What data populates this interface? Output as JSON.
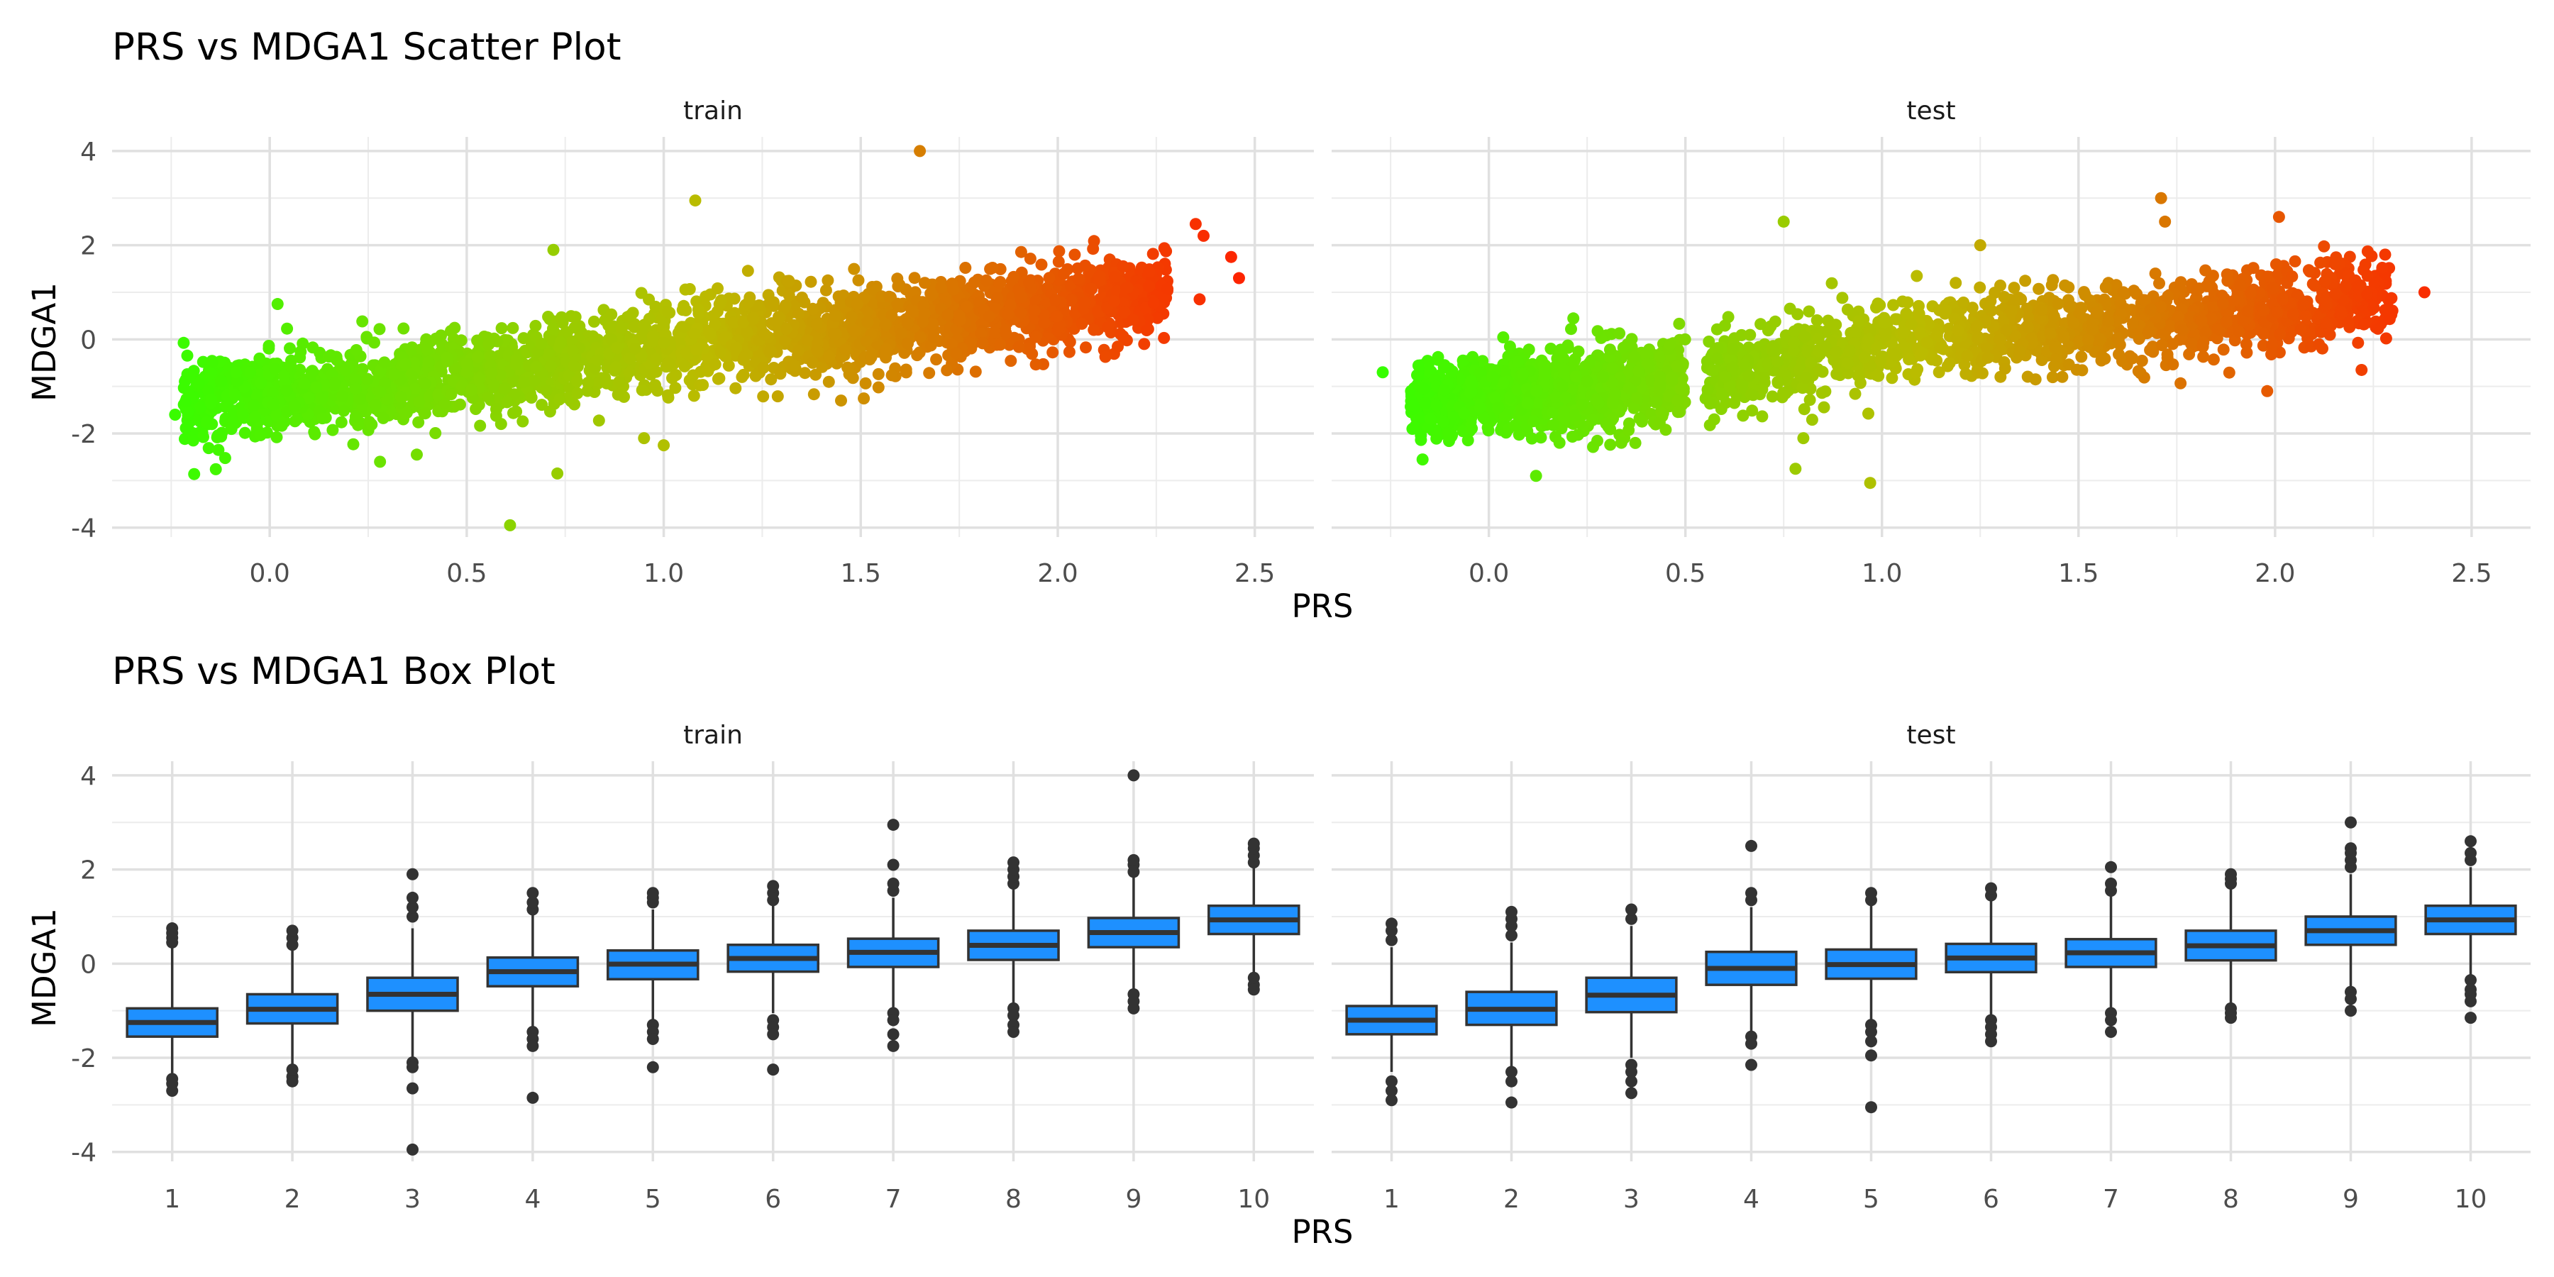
{
  "chart_data": [
    {
      "type": "scatter",
      "title": "PRS vs MDGA1 Scatter Plot",
      "xlabel": "PRS",
      "ylabel": "MDGA1",
      "panels": [
        "train",
        "test"
      ],
      "xlim": [
        -0.4,
        2.65
      ],
      "ylim": [
        -4.2,
        4.3
      ],
      "x_ticks": [
        "0.0",
        "0.5",
        "1.0",
        "1.5",
        "2.0",
        "2.5"
      ],
      "y_ticks": [
        "-4",
        "-2",
        "0",
        "2",
        "4"
      ],
      "grid": true,
      "color_scale": {
        "low": "#33ff00",
        "mid": "#bbbb00",
        "high": "#ff2000"
      },
      "trend": {
        "x": [
          -0.2,
          0.3,
          0.7,
          1.0,
          1.3,
          1.6,
          2.0,
          2.3
        ],
        "y": [
          -1.3,
          -1.0,
          -0.6,
          -0.1,
          0.1,
          0.3,
          0.7,
          1.0
        ]
      },
      "train_outliers": [
        {
          "x": 1.65,
          "y": 4.0
        },
        {
          "x": 1.08,
          "y": 2.95
        },
        {
          "x": 0.61,
          "y": -3.95
        },
        {
          "x": 0.73,
          "y": -2.85
        },
        {
          "x": 0.72,
          "y": 1.9
        },
        {
          "x": 2.44,
          "y": 1.75
        },
        {
          "x": 2.46,
          "y": 1.3
        },
        {
          "x": 2.35,
          "y": 2.45
        },
        {
          "x": 2.37,
          "y": 2.2
        },
        {
          "x": 0.28,
          "y": -2.6
        },
        {
          "x": 1.0,
          "y": -2.25
        },
        {
          "x": 0.95,
          "y": -2.1
        },
        {
          "x": -0.24,
          "y": -1.6
        },
        {
          "x": 1.45,
          "y": -1.3
        },
        {
          "x": 0.02,
          "y": 0.75
        },
        {
          "x": 2.36,
          "y": 0.85
        }
      ],
      "test_outliers": [
        {
          "x": -0.27,
          "y": -0.7
        },
        {
          "x": 0.75,
          "y": 2.5
        },
        {
          "x": 0.12,
          "y": -2.9
        },
        {
          "x": 0.97,
          "y": -3.05
        },
        {
          "x": 0.78,
          "y": -2.75
        },
        {
          "x": 1.71,
          "y": 3.0
        },
        {
          "x": 2.01,
          "y": 2.6
        },
        {
          "x": 2.28,
          "y": 1.8
        },
        {
          "x": 2.38,
          "y": 1.0
        },
        {
          "x": 1.98,
          "y": -1.1
        },
        {
          "x": 2.22,
          "y": -0.65
        },
        {
          "x": 1.72,
          "y": 2.5
        },
        {
          "x": 0.8,
          "y": -2.1
        },
        {
          "x": 1.25,
          "y": 2.0
        }
      ]
    },
    {
      "type": "box",
      "title": "PRS vs MDGA1 Box Plot",
      "xlabel": "PRS",
      "ylabel": "MDGA1",
      "panels": [
        "train",
        "test"
      ],
      "categories": [
        "1",
        "2",
        "3",
        "4",
        "5",
        "6",
        "7",
        "8",
        "9",
        "10"
      ],
      "ylim": [
        -4.2,
        4.3
      ],
      "y_ticks": [
        "-4",
        "-2",
        "0",
        "2",
        "4"
      ],
      "fill": "#1e90ff",
      "train": [
        {
          "q1": -1.55,
          "median": -1.25,
          "q3": -0.95,
          "lo": -2.35,
          "hi": 0.35,
          "outliers": [
            -2.55,
            -2.7,
            -2.45,
            0.45,
            0.55,
            0.65,
            0.75
          ]
        },
        {
          "q1": -1.27,
          "median": -0.97,
          "q3": -0.65,
          "lo": -2.15,
          "hi": 0.3,
          "outliers": [
            -2.25,
            -2.4,
            -2.5,
            0.4,
            0.55,
            0.7
          ]
        },
        {
          "q1": -1.0,
          "median": -0.65,
          "q3": -0.3,
          "lo": -2.0,
          "hi": 0.75,
          "outliers": [
            -2.1,
            -2.2,
            -2.65,
            -3.95,
            1.0,
            1.2,
            1.4,
            1.9
          ]
        },
        {
          "q1": -0.48,
          "median": -0.17,
          "q3": 0.13,
          "lo": -1.35,
          "hi": 1.05,
          "outliers": [
            -1.45,
            -1.6,
            -1.75,
            -2.85,
            1.15,
            1.3,
            1.5
          ]
        },
        {
          "q1": -0.33,
          "median": -0.01,
          "q3": 0.28,
          "lo": -1.2,
          "hi": 1.15,
          "outliers": [
            -1.3,
            -1.45,
            -1.6,
            -2.2,
            1.3,
            1.4,
            1.5
          ]
        },
        {
          "q1": -0.17,
          "median": 0.11,
          "q3": 0.4,
          "lo": -1.05,
          "hi": 1.25,
          "outliers": [
            -1.2,
            -1.35,
            -1.5,
            -2.25,
            1.35,
            1.5,
            1.65
          ]
        },
        {
          "q1": -0.07,
          "median": 0.24,
          "q3": 0.53,
          "lo": -0.95,
          "hi": 1.4,
          "outliers": [
            -1.05,
            -1.2,
            -1.5,
            -1.75,
            1.55,
            1.7,
            2.1,
            2.95
          ]
        },
        {
          "q1": 0.08,
          "median": 0.39,
          "q3": 0.7,
          "lo": -0.85,
          "hi": 1.6,
          "outliers": [
            -0.95,
            -1.1,
            -1.3,
            -1.45,
            1.7,
            1.85,
            2.0,
            2.15
          ]
        },
        {
          "q1": 0.35,
          "median": 0.66,
          "q3": 0.97,
          "lo": -0.55,
          "hi": 1.85,
          "outliers": [
            -0.65,
            -0.8,
            -0.95,
            1.95,
            2.1,
            2.2,
            4.0
          ]
        },
        {
          "q1": 0.63,
          "median": 0.93,
          "q3": 1.23,
          "lo": -0.2,
          "hi": 2.05,
          "outliers": [
            -0.3,
            -0.45,
            -0.55,
            2.15,
            2.3,
            2.45,
            2.55
          ]
        }
      ],
      "test": [
        {
          "q1": -1.5,
          "median": -1.2,
          "q3": -0.9,
          "lo": -2.3,
          "hi": 0.35,
          "outliers": [
            -2.5,
            -2.7,
            -2.9,
            0.5,
            0.7,
            0.85
          ]
        },
        {
          "q1": -1.3,
          "median": -0.97,
          "q3": -0.6,
          "lo": -2.2,
          "hi": 0.45,
          "outliers": [
            -2.3,
            -2.5,
            -2.95,
            0.6,
            0.8,
            0.95,
            1.1
          ]
        },
        {
          "q1": -1.03,
          "median": -0.67,
          "q3": -0.3,
          "lo": -2.0,
          "hi": 0.8,
          "outliers": [
            -2.15,
            -2.3,
            -2.5,
            -2.75,
            0.95,
            1.15
          ]
        },
        {
          "q1": -0.45,
          "median": -0.1,
          "q3": 0.25,
          "lo": -1.45,
          "hi": 1.2,
          "outliers": [
            -1.55,
            -1.7,
            -2.15,
            1.35,
            1.5,
            2.5
          ]
        },
        {
          "q1": -0.32,
          "median": -0.02,
          "q3": 0.3,
          "lo": -1.2,
          "hi": 1.25,
          "outliers": [
            -1.3,
            -1.45,
            -1.65,
            -1.95,
            -3.05,
            1.35,
            1.5
          ]
        },
        {
          "q1": -0.18,
          "median": 0.12,
          "q3": 0.42,
          "lo": -1.1,
          "hi": 1.35,
          "outliers": [
            -1.2,
            -1.35,
            -1.5,
            -1.65,
            1.45,
            1.6
          ]
        },
        {
          "q1": -0.07,
          "median": 0.23,
          "q3": 0.52,
          "lo": -0.95,
          "hi": 1.45,
          "outliers": [
            -1.05,
            -1.2,
            -1.45,
            1.55,
            1.7,
            2.05
          ]
        },
        {
          "q1": 0.07,
          "median": 0.38,
          "q3": 0.7,
          "lo": -0.85,
          "hi": 1.6,
          "outliers": [
            -0.95,
            -1.05,
            -1.15,
            1.7,
            1.8,
            1.9
          ]
        },
        {
          "q1": 0.4,
          "median": 0.7,
          "q3": 1.0,
          "lo": -0.5,
          "hi": 1.9,
          "outliers": [
            -0.6,
            -0.75,
            -1.0,
            2.05,
            2.2,
            2.35,
            2.45,
            3.0
          ]
        },
        {
          "q1": 0.63,
          "median": 0.93,
          "q3": 1.23,
          "lo": -0.25,
          "hi": 2.05,
          "outliers": [
            -0.35,
            -0.55,
            -0.65,
            -0.8,
            -1.15,
            2.2,
            2.35,
            2.6
          ]
        }
      ]
    }
  ]
}
